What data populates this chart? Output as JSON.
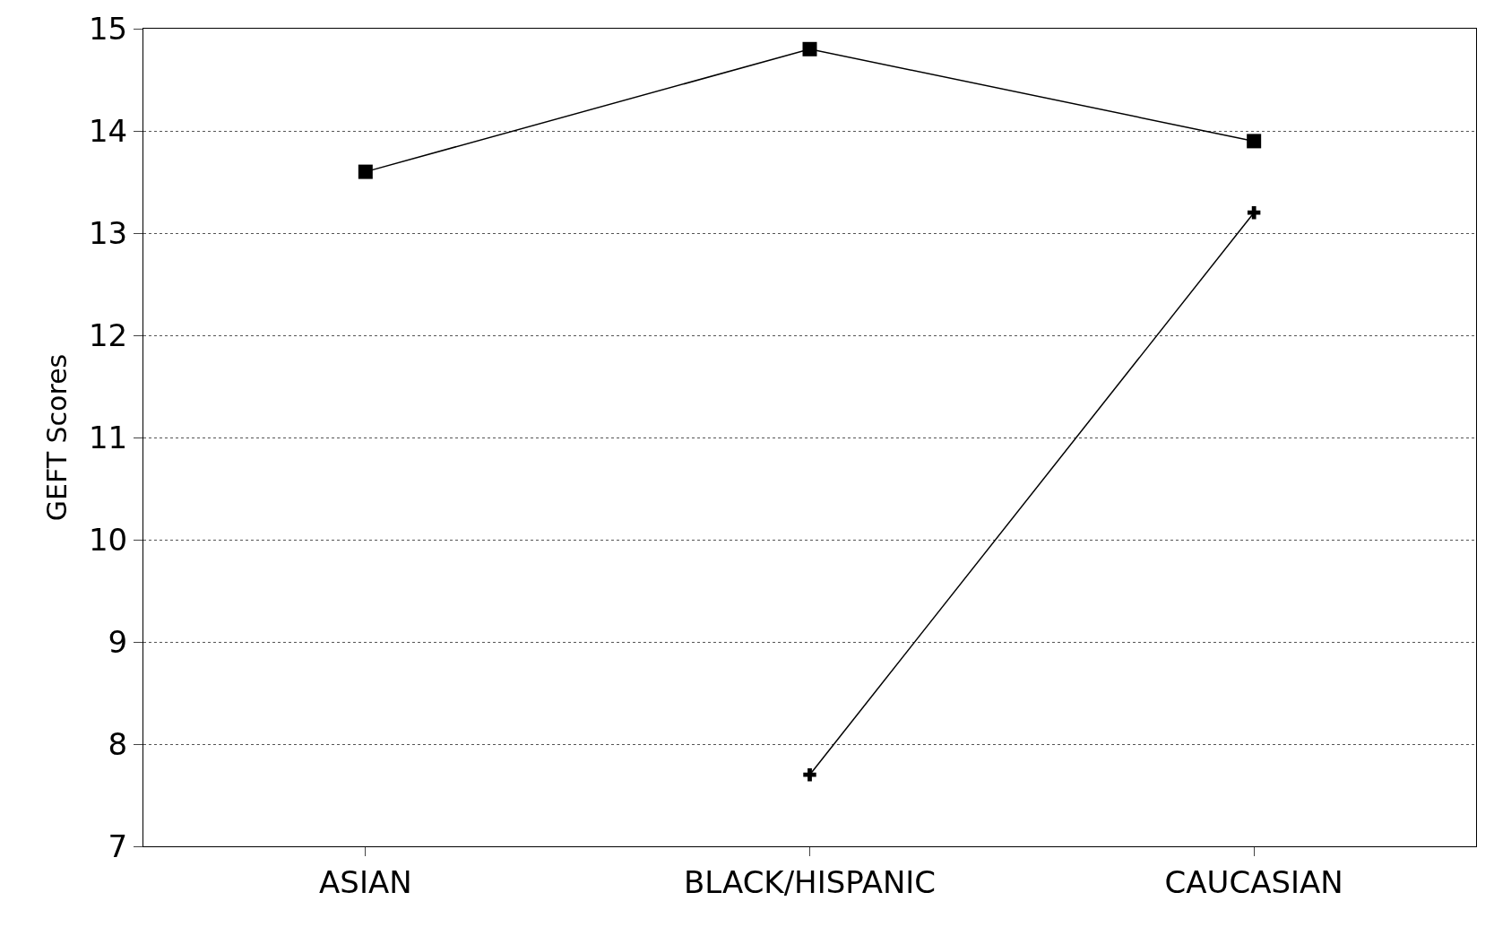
{
  "chart_data": {
    "type": "line",
    "ylabel": "GEFT Scores",
    "categories": [
      "ASIAN",
      "BLACK/HISPANIC",
      "CAUCASIAN"
    ],
    "series": [
      {
        "color": "#000000",
        "marker": "square",
        "values": [
          13.6,
          14.8,
          13.9
        ]
      },
      {
        "color": "#000000",
        "marker": "cross",
        "values": [
          null,
          7.7,
          13.2
        ]
      }
    ],
    "ylim": [
      7,
      15
    ],
    "yticks": [
      7,
      8,
      9,
      10,
      11,
      12,
      13,
      14,
      15
    ],
    "grid": "y",
    "legend": false
  }
}
